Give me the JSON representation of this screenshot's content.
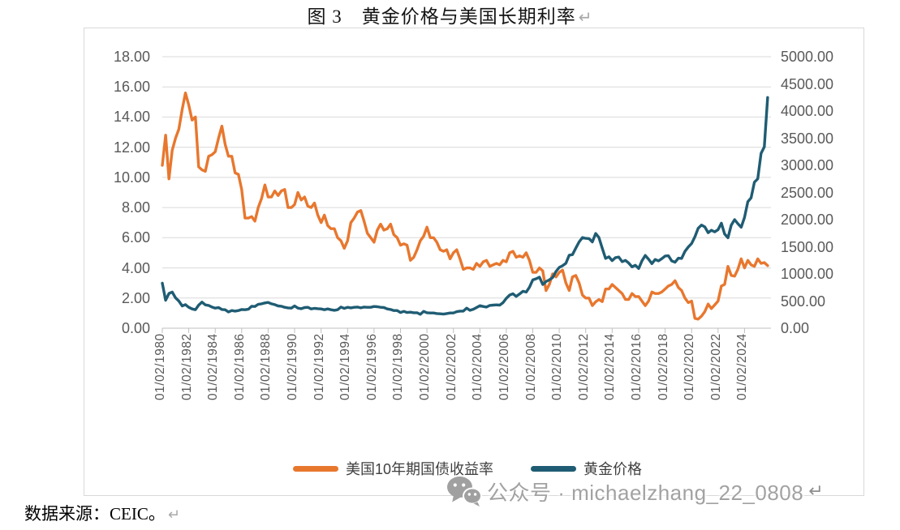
{
  "title": {
    "text": "图 3　黄金价格与美国长期利率",
    "paragraph_mark": "↵"
  },
  "watermark": {
    "icon": "wechat-icon",
    "text": "公众号 · michaelzhang_22_0808",
    "paragraph_mark": "↵",
    "color": "#a2a2a2"
  },
  "source_note": {
    "text": "数据来源：CEIC。",
    "paragraph_mark": "↵"
  },
  "colors": {
    "yield_line": "#E8772E",
    "gold_line": "#1F5C73",
    "gridline": "#D9D9D9",
    "axis_line": "#BFBFBF",
    "axis_text": "#595959",
    "box_border": "#D9D9D9"
  },
  "chart_data": {
    "type": "line",
    "title": "图 3　黄金价格与美国长期利率",
    "grid": "horizontal",
    "legend_position": "bottom",
    "left_axis": {
      "min": 0,
      "max": 18,
      "step": 2,
      "tick_labels": [
        "18.00",
        "16.00",
        "14.00",
        "12.00",
        "10.00",
        "8.00",
        "6.00",
        "4.00",
        "2.00",
        "0.00"
      ]
    },
    "right_axis": {
      "min": 0,
      "max": 5000,
      "step": 500,
      "tick_labels": [
        "5000.00",
        "4500.00",
        "4000.00",
        "3500.00",
        "3000.00",
        "2500.00",
        "2000.00",
        "1500.00",
        "1000.00",
        "500.00",
        "0.00"
      ]
    },
    "x_axis": {
      "first_year": 1980,
      "label_step_years": 2,
      "tick_labels": [
        "01/02/1980",
        "01/02/1982",
        "01/02/1984",
        "01/02/1986",
        "01/02/1988",
        "01/02/1990",
        "01/02/1992",
        "01/02/1994",
        "01/02/1996",
        "01/02/1998",
        "01/02/2000",
        "01/02/2002",
        "01/02/2004",
        "01/02/2006",
        "01/02/2008",
        "01/02/2010",
        "01/02/2012",
        "01/02/2014",
        "01/02/2016",
        "01/02/2018",
        "01/02/2020",
        "01/02/2022",
        "01/02/2024"
      ]
    },
    "series": [
      {
        "name": "美国10年期国债收益率",
        "axis": "left",
        "color": "#E8772E",
        "x_start": 1980,
        "x_step": 0.25,
        "values": [
          10.8,
          12.8,
          9.9,
          11.8,
          12.6,
          13.2,
          14.5,
          15.6,
          14.8,
          13.8,
          14.0,
          10.7,
          10.5,
          10.4,
          11.4,
          11.5,
          11.7,
          12.6,
          13.4,
          12.2,
          11.4,
          11.4,
          10.3,
          10.2,
          9.2,
          7.3,
          7.3,
          7.4,
          7.1,
          8.0,
          8.6,
          9.5,
          8.7,
          8.7,
          9.1,
          8.8,
          9.1,
          9.2,
          8.0,
          8.0,
          8.2,
          9.0,
          8.5,
          8.7,
          8.1,
          8.0,
          8.3,
          7.5,
          7.0,
          7.5,
          6.8,
          6.6,
          6.6,
          6.0,
          5.8,
          5.3,
          5.8,
          7.0,
          7.3,
          7.7,
          7.8,
          7.1,
          6.3,
          6.0,
          5.7,
          6.5,
          6.9,
          6.5,
          6.6,
          6.9,
          6.2,
          6.0,
          5.5,
          5.6,
          5.5,
          4.5,
          4.7,
          5.2,
          5.8,
          6.1,
          6.7,
          6.0,
          6.0,
          5.7,
          5.2,
          5.1,
          5.2,
          4.6,
          5.0,
          5.2,
          4.6,
          3.9,
          4.0,
          4.0,
          3.9,
          4.3,
          4.1,
          4.4,
          4.5,
          4.1,
          4.2,
          4.3,
          4.2,
          4.5,
          4.4,
          5.0,
          5.1,
          4.7,
          4.8,
          4.7,
          5.0,
          4.5,
          3.7,
          3.7,
          4.0,
          3.8,
          2.5,
          2.9,
          3.6,
          3.4,
          3.7,
          3.85,
          3.0,
          2.5,
          3.4,
          3.5,
          3.0,
          2.2,
          2.0,
          2.0,
          1.5,
          1.75,
          1.9,
          1.76,
          2.6,
          2.6,
          2.9,
          2.7,
          2.5,
          2.3,
          1.9,
          1.9,
          2.3,
          2.1,
          2.1,
          1.8,
          1.5,
          1.8,
          2.4,
          2.3,
          2.3,
          2.4,
          2.6,
          2.8,
          2.9,
          3.15,
          2.7,
          2.5,
          2.0,
          1.7,
          1.8,
          0.65,
          0.6,
          0.8,
          1.1,
          1.6,
          1.3,
          1.55,
          1.8,
          2.8,
          2.9,
          4.1,
          3.5,
          3.45,
          3.9,
          4.6,
          4.0,
          4.5,
          4.2,
          4.1,
          4.6,
          4.3,
          4.35,
          4.15
        ]
      },
      {
        "name": "黄金价格",
        "axis": "right",
        "color": "#1F5C73",
        "x_start": 1980,
        "x_step": 0.25,
        "values": [
          830,
          515,
          640,
          665,
          560,
          500,
          410,
          435,
          385,
          355,
          340,
          425,
          480,
          430,
          420,
          390,
          370,
          380,
          345,
          340,
          300,
          325,
          315,
          325,
          345,
          340,
          350,
          405,
          400,
          440,
          450,
          465,
          475,
          450,
          435,
          410,
          405,
          385,
          375,
          370,
          410,
          370,
          360,
          380,
          385,
          355,
          365,
          360,
          355,
          340,
          355,
          340,
          330,
          340,
          390,
          365,
          385,
          375,
          385,
          390,
          375,
          390,
          385,
          385,
          400,
          395,
          385,
          380,
          355,
          345,
          325,
          325,
          290,
          310,
          290,
          295,
          285,
          285,
          255,
          310,
          285,
          280,
          280,
          270,
          265,
          260,
          270,
          280,
          280,
          305,
          315,
          315,
          370,
          330,
          350,
          380,
          415,
          400,
          390,
          420,
          425,
          430,
          425,
          470,
          550,
          610,
          635,
          585,
          630,
          680,
          665,
          755,
          890,
          910,
          940,
          805,
          860,
          890,
          935,
          1045,
          1120,
          1150,
          1195,
          1345,
          1355,
          1475,
          1590,
          1670,
          1655,
          1650,
          1590,
          1745,
          1670,
          1475,
          1285,
          1315,
          1245,
          1300,
          1310,
          1225,
          1250,
          1200,
          1130,
          1160,
          1100,
          1240,
          1340,
          1270,
          1190,
          1265,
          1240,
          1280,
          1330,
          1335,
          1240,
          1215,
          1290,
          1285,
          1415,
          1495,
          1560,
          1685,
          1840,
          1900,
          1865,
          1760,
          1805,
          1775,
          1815,
          1935,
          1735,
          1665,
          1900,
          2000,
          1925,
          1860,
          2040,
          2330,
          2400,
          2690,
          2750,
          3220,
          3340,
          4250
        ]
      }
    ]
  }
}
